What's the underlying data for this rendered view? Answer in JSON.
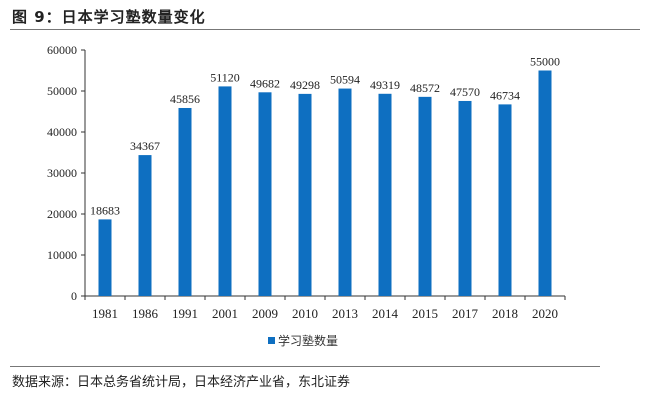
{
  "title": "图 9：日本学习塾数量变化",
  "source": "数据来源：日本总务省统计局，日本经济产业省，东北证券",
  "chart_data": {
    "type": "bar",
    "title": "",
    "xlabel": "",
    "ylabel": "",
    "categories": [
      "1981",
      "1986",
      "1991",
      "2001",
      "2009",
      "2010",
      "2013",
      "2014",
      "2015",
      "2017",
      "2018",
      "2020"
    ],
    "series": [
      {
        "name": "学习塾数量",
        "values": [
          18683,
          34367,
          45856,
          51120,
          49682,
          49298,
          50594,
          49319,
          48572,
          47570,
          46734,
          55000
        ],
        "color": "#0E6FC1"
      }
    ],
    "ylim": [
      0,
      60000
    ],
    "yticks": [
      0,
      10000,
      20000,
      30000,
      40000,
      50000,
      60000
    ],
    "grid": false,
    "data_labels": true,
    "legend": "bottom-center"
  }
}
